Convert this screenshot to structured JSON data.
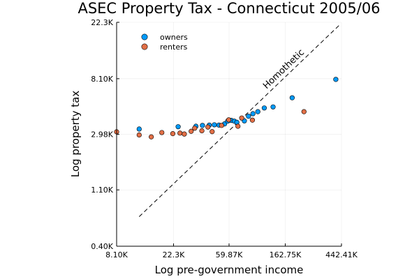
{
  "chart_data": {
    "type": "scatter",
    "title": "ASEC Property Tax - Connecticut 2005/06",
    "xlabel": "Log pre-government income",
    "ylabel": "Log property tax",
    "scale": "log",
    "xlim": [
      8100,
      442410
    ],
    "ylim": [
      400,
      22300
    ],
    "xticks": [
      {
        "value": 8100,
        "label": "8.10K"
      },
      {
        "value": 22300,
        "label": "22.3K"
      },
      {
        "value": 59870,
        "label": "59.87K"
      },
      {
        "value": 162750,
        "label": "162.75K"
      },
      {
        "value": 442410,
        "label": "442.41K"
      }
    ],
    "yticks": [
      {
        "value": 400,
        "label": "0.40K"
      },
      {
        "value": 1100,
        "label": "1.10K"
      },
      {
        "value": 2980,
        "label": "2.98K"
      },
      {
        "value": 8100,
        "label": "8.10K"
      },
      {
        "value": 22300,
        "label": "22.3K"
      }
    ],
    "grid": true,
    "legend": "top-left",
    "series": [
      {
        "name": "owners",
        "color": "#009AF9",
        "points": [
          [
            12100,
            3280
          ],
          [
            24200,
            3420
          ],
          [
            33200,
            3450
          ],
          [
            37300,
            3500
          ],
          [
            42100,
            3520
          ],
          [
            46100,
            3540
          ],
          [
            50000,
            3520
          ],
          [
            55300,
            3600
          ],
          [
            58400,
            3780
          ],
          [
            62300,
            3830
          ],
          [
            65700,
            3780
          ],
          [
            68800,
            3700
          ],
          [
            78600,
            3800
          ],
          [
            84600,
            4130
          ],
          [
            91500,
            4320
          ],
          [
            99900,
            4480
          ],
          [
            112000,
            4790
          ],
          [
            131000,
            4880
          ],
          [
            184000,
            5750
          ],
          [
            400000,
            8000
          ]
        ]
      },
      {
        "name": "renters",
        "color": "#E26F46",
        "points": [
          [
            8100,
            3120
          ],
          [
            12100,
            2950
          ],
          [
            15000,
            2850
          ],
          [
            18100,
            3080
          ],
          [
            22000,
            3020
          ],
          [
            25000,
            3050
          ],
          [
            27000,
            3000
          ],
          [
            30500,
            3150
          ],
          [
            32500,
            3330
          ],
          [
            36900,
            3180
          ],
          [
            41100,
            3400
          ],
          [
            44300,
            3130
          ],
          [
            52400,
            3500
          ],
          [
            59500,
            3870
          ],
          [
            70100,
            3450
          ],
          [
            75000,
            4000
          ],
          [
            90700,
            3850
          ],
          [
            227000,
            4480
          ]
        ]
      }
    ],
    "reference_line": {
      "label": "Homothetic",
      "x": [
        12100,
        430000
      ],
      "y": [
        680,
        21400
      ]
    }
  }
}
